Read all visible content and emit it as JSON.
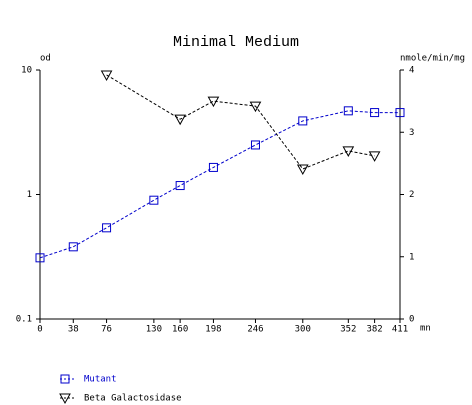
{
  "chart_data": {
    "type": "line",
    "title": "Minimal Medium",
    "y_label": "od",
    "y2_label": "nmole/min/mg",
    "x_label": "mn",
    "xlim": [
      0,
      411
    ],
    "xticks": [
      0,
      38,
      76,
      130,
      160,
      198,
      246,
      300,
      352,
      382,
      411
    ],
    "ylim": [
      0.1,
      10
    ],
    "yticks": [
      0.1,
      1,
      10
    ],
    "log_y": true,
    "y2lim": [
      0,
      4
    ],
    "y2ticks": [
      0,
      1,
      2,
      3,
      4
    ],
    "series": [
      {
        "name": "Mutant",
        "color": "#0000cc",
        "marker": "square",
        "x": [
          0,
          38,
          76,
          130,
          160,
          198,
          246,
          300,
          352,
          382,
          411
        ],
        "values": [
          0.31,
          0.38,
          0.54,
          0.9,
          1.18,
          1.65,
          2.5,
          3.9,
          4.7,
          4.55,
          4.55
        ]
      },
      {
        "name": "Beta Galactosidase",
        "color": "#000000",
        "marker": "triangle-down",
        "axis": "y2",
        "x": [
          76,
          160,
          198,
          246,
          300,
          352,
          382
        ],
        "values": [
          3.92,
          3.21,
          3.5,
          3.42,
          2.41,
          2.7,
          2.62
        ]
      }
    ]
  }
}
